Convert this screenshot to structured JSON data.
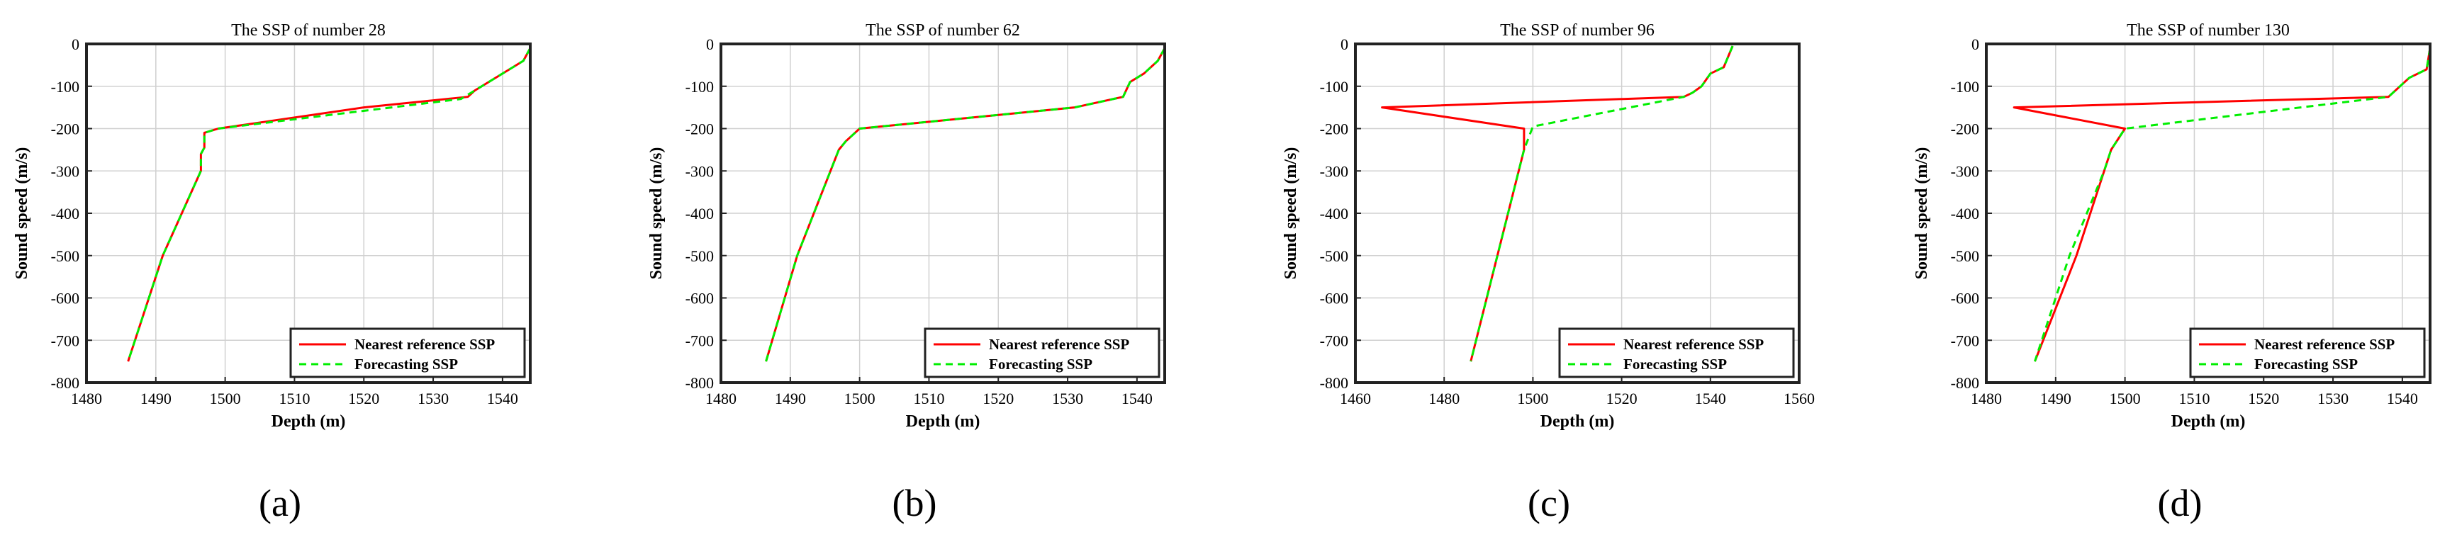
{
  "chart_data": [
    {
      "type": "line",
      "title": "The SSP of number 28",
      "xlabel": "Depth (m)",
      "ylabel": "Sound speed (m/s)",
      "xlim": [
        1480,
        1544
      ],
      "ylim": [
        -800,
        0
      ],
      "xticks": [
        1480,
        1490,
        1500,
        1510,
        1520,
        1530,
        1540
      ],
      "yticks": [
        0,
        -100,
        -200,
        -300,
        -400,
        -500,
        -600,
        -700,
        -800
      ],
      "grid": true,
      "legend_position": "bottom-right",
      "panel_label": "(a)",
      "series": [
        {
          "name": "Nearest reference SSP",
          "color": "#ff0000",
          "style": "solid",
          "x": [
            1544,
            1543,
            1541,
            1536,
            1535,
            1520,
            1499,
            1497,
            1497,
            1496.5,
            1496.5,
            1491,
            1486
          ],
          "y": [
            -10,
            -40,
            -60,
            -110,
            -125,
            -150,
            -200,
            -210,
            -245,
            -260,
            -300,
            -500,
            -750
          ]
        },
        {
          "name": "Forecasting SSP",
          "color": "#00ee00",
          "style": "dashed",
          "x": [
            1544,
            1543,
            1541,
            1536,
            1534,
            1519,
            1499,
            1497,
            1497,
            1496.5,
            1496.5,
            1491,
            1486
          ],
          "y": [
            -10,
            -40,
            -60,
            -110,
            -130,
            -160,
            -200,
            -210,
            -245,
            -260,
            -300,
            -500,
            -750
          ]
        }
      ]
    },
    {
      "type": "line",
      "title": "The SSP of number 62",
      "xlabel": "Depth (m)",
      "ylabel": "Sound speed (m/s)",
      "xlim": [
        1480,
        1544
      ],
      "ylim": [
        -800,
        0
      ],
      "xticks": [
        1480,
        1490,
        1500,
        1510,
        1520,
        1530,
        1540
      ],
      "yticks": [
        0,
        -100,
        -200,
        -300,
        -400,
        -500,
        -600,
        -700,
        -800
      ],
      "grid": true,
      "legend_position": "bottom-right",
      "panel_label": "(b)",
      "series": [
        {
          "name": "Nearest reference SSP",
          "color": "#ff0000",
          "style": "solid",
          "x": [
            1544,
            1543,
            1541,
            1539,
            1538,
            1531,
            1500,
            1498,
            1497,
            1491,
            1486.5
          ],
          "y": [
            -10,
            -40,
            -70,
            -90,
            -125,
            -150,
            -200,
            -230,
            -250,
            -500,
            -750
          ]
        },
        {
          "name": "Forecasting SSP",
          "color": "#00ee00",
          "style": "dashed",
          "x": [
            1544,
            1543,
            1541,
            1539,
            1538,
            1531,
            1500,
            1498,
            1497,
            1491,
            1486.5
          ],
          "y": [
            -10,
            -40,
            -70,
            -90,
            -125,
            -150,
            -200,
            -230,
            -250,
            -500,
            -750
          ]
        }
      ]
    },
    {
      "type": "line",
      "title": "The SSP of number 96",
      "xlabel": "Depth (m)",
      "ylabel": "Sound speed (m/s)",
      "xlim": [
        1460,
        1560
      ],
      "ylim": [
        -800,
        0
      ],
      "xticks": [
        1460,
        1480,
        1500,
        1520,
        1540,
        1560
      ],
      "yticks": [
        0,
        -100,
        -200,
        -300,
        -400,
        -500,
        -600,
        -700,
        -800
      ],
      "grid": true,
      "legend_position": "bottom-right",
      "panel_label": "(c)",
      "series": [
        {
          "name": "Nearest reference SSP",
          "color": "#ff0000",
          "style": "solid",
          "x": [
            1545,
            1543,
            1540,
            1538,
            1536,
            1534,
            1466,
            1498,
            1498,
            1486
          ],
          "y": [
            -5,
            -55,
            -70,
            -100,
            -115,
            -125,
            -150,
            -200,
            -250,
            -750
          ]
        },
        {
          "name": "Forecasting SSP",
          "color": "#00ee00",
          "style": "dashed",
          "x": [
            1545,
            1543,
            1540,
            1538,
            1536,
            1534,
            1500,
            1498,
            1486
          ],
          "y": [
            -5,
            -55,
            -70,
            -100,
            -115,
            -125,
            -195,
            -250,
            -750
          ]
        }
      ]
    },
    {
      "type": "line",
      "title": "The SSP of number 130",
      "xlabel": "Depth (m)",
      "ylabel": "Sound speed (m/s)",
      "xlim": [
        1480,
        1544
      ],
      "ylim": [
        -800,
        0
      ],
      "xticks": [
        1480,
        1490,
        1500,
        1510,
        1520,
        1530,
        1540
      ],
      "yticks": [
        0,
        -100,
        -200,
        -300,
        -400,
        -500,
        -600,
        -700,
        -800
      ],
      "grid": true,
      "legend_position": "bottom-right",
      "panel_label": "(d)",
      "series": [
        {
          "name": "Nearest reference SSP",
          "color": "#ff0000",
          "style": "solid",
          "x": [
            1544,
            1543.5,
            1541,
            1538,
            1484,
            1500,
            1498,
            1497,
            1493,
            1487
          ],
          "y": [
            -10,
            -60,
            -80,
            -125,
            -150,
            -200,
            -250,
            -300,
            -500,
            -750
          ]
        },
        {
          "name": "Forecasting SSP",
          "color": "#00ee00",
          "style": "dashed",
          "x": [
            1544,
            1543.5,
            1541,
            1538,
            1500,
            1498,
            1497,
            1492,
            1487
          ],
          "y": [
            -10,
            -60,
            -80,
            -125,
            -200,
            -250,
            -300,
            -500,
            -750
          ]
        }
      ]
    }
  ]
}
